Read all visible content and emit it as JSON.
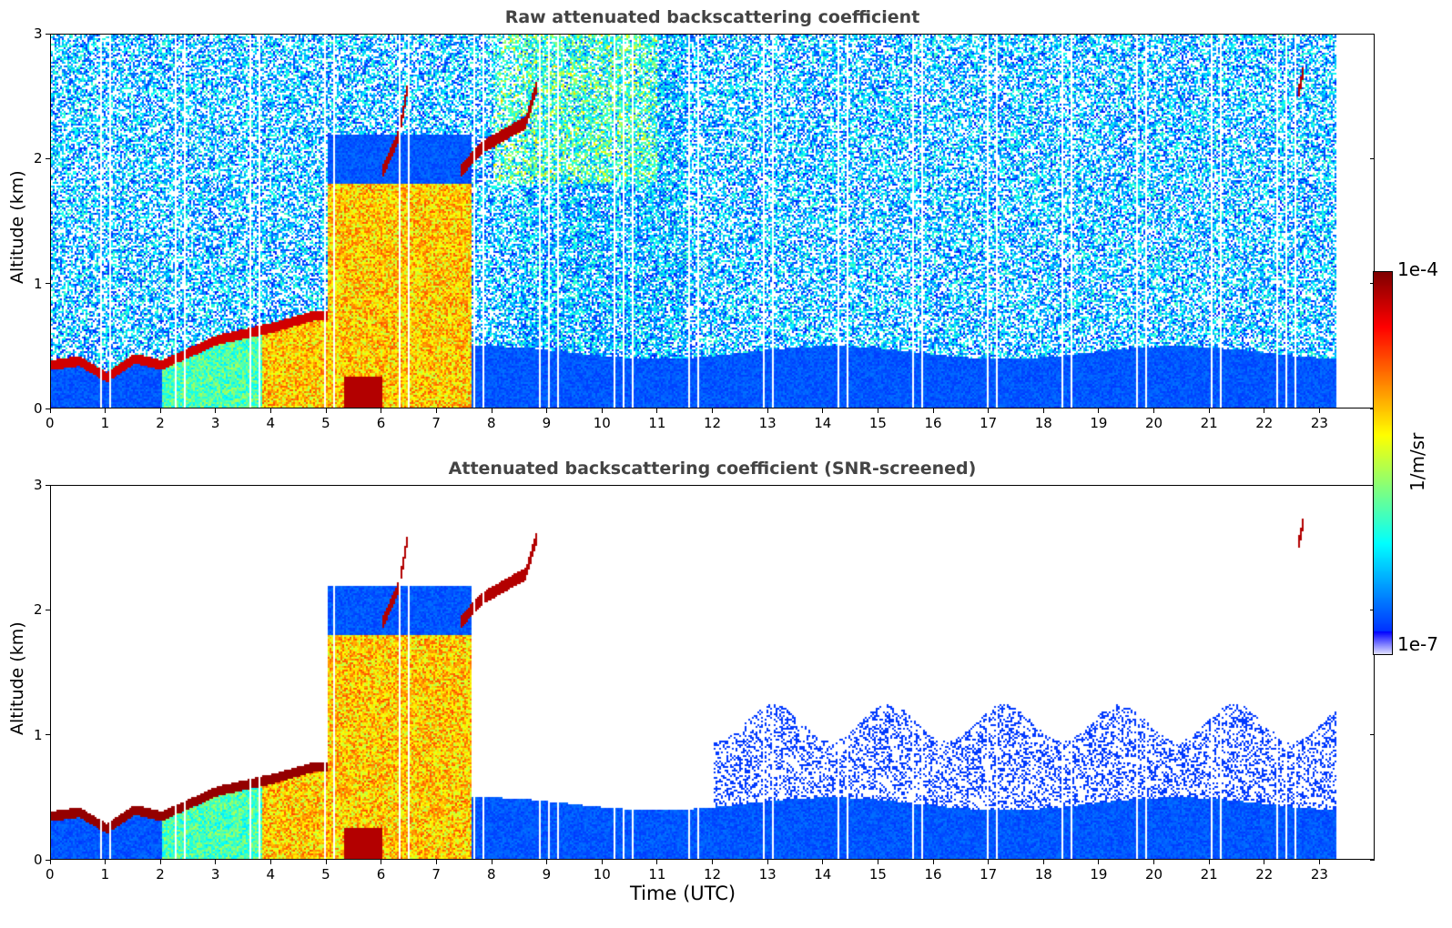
{
  "panels": [
    {
      "title": "Raw attenuated backscattering coefficient",
      "ylabel": "Altitude (km)",
      "xlabel": ""
    },
    {
      "title": "Attenuated backscattering coefficient (SNR-screened)",
      "ylabel": "Altitude (km)",
      "xlabel": "Time (UTC)"
    }
  ],
  "colorbar": {
    "max_label": "1e-4",
    "min_label": "1e-7",
    "unit_label": "1/m/sr",
    "colormap": "jet"
  },
  "chart_data": [
    {
      "type": "heatmap",
      "title": "Raw attenuated backscattering coefficient",
      "ylabel": "Altitude (km)",
      "x_range": [
        0,
        24
      ],
      "y_range": [
        0,
        3
      ],
      "x_ticks": [
        "0",
        "1",
        "2",
        "3",
        "4",
        "5",
        "6",
        "7",
        "8",
        "9",
        "10",
        "11",
        "12",
        "13",
        "14",
        "15",
        "16",
        "17",
        "18",
        "19",
        "20",
        "21",
        "22",
        "23"
      ],
      "y_ticks": [
        "0",
        "1",
        "2",
        "3"
      ],
      "data_end_hour": 23.3,
      "layers": [
        {
          "feature": "boundary layer top",
          "hours": [
            0,
            0.5,
            1,
            1.5,
            2,
            3,
            4,
            4.8
          ],
          "altitude_km": [
            0.35,
            0.38,
            0.25,
            0.4,
            0.35,
            0.55,
            0.65,
            0.75
          ]
        },
        {
          "feature": "rising cloud layer",
          "hours": [
            7.4,
            7.8,
            8.2,
            8.6,
            8.8
          ],
          "altitude_km": [
            1.9,
            2.1,
            2.2,
            2.3,
            2.6
          ]
        },
        {
          "feature": "cloud",
          "hours": [
            6.0,
            6.3,
            6.5
          ],
          "altitude_km": [
            1.9,
            2.2,
            2.7
          ]
        },
        {
          "feature": "isolated cloud",
          "hours": [
            22.6,
            22.7
          ],
          "altitude_km": [
            2.5,
            2.7
          ]
        }
      ]
    },
    {
      "type": "heatmap",
      "title": "Attenuated backscattering coefficient (SNR-screened)",
      "ylabel": "Altitude (km)",
      "xlabel": "Time (UTC)",
      "x_range": [
        0,
        24
      ],
      "y_range": [
        0,
        3
      ],
      "x_ticks": [
        "0",
        "1",
        "2",
        "3",
        "4",
        "5",
        "6",
        "7",
        "8",
        "9",
        "10",
        "11",
        "12",
        "13",
        "14",
        "15",
        "16",
        "17",
        "18",
        "19",
        "20",
        "21",
        "22",
        "23"
      ],
      "y_ticks": [
        "0",
        "1",
        "2",
        "3"
      ],
      "data_end_hour": 23.3,
      "screened": true
    }
  ],
  "colors": {
    "background": "#ffffff",
    "title": "#444444"
  }
}
